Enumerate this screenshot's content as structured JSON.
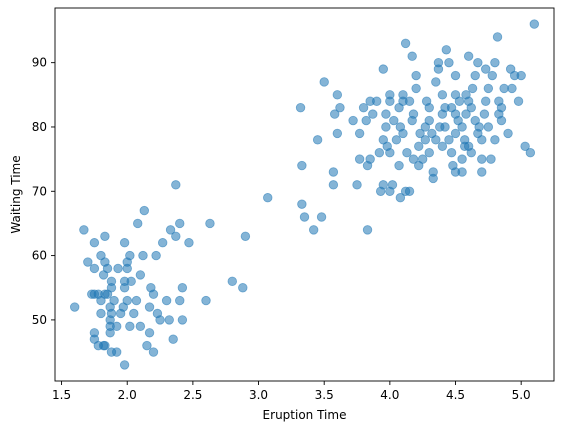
{
  "chart_data": {
    "type": "scatter",
    "title": "",
    "xlabel": "Eruption Time",
    "ylabel": "Waiting Time",
    "xlim": [
      1.45,
      5.25
    ],
    "ylim": [
      40.5,
      98.5
    ],
    "xticks": [
      1.5,
      2.0,
      2.5,
      3.0,
      3.5,
      4.0,
      4.5,
      5.0
    ],
    "xtick_labels": [
      "1.5",
      "2.0",
      "2.5",
      "3.0",
      "3.5",
      "4.0",
      "4.5",
      "5.0"
    ],
    "yticks": [
      50,
      60,
      70,
      80,
      90
    ],
    "ytick_labels": [
      "50",
      "60",
      "70",
      "80",
      "90"
    ],
    "grid": false,
    "marker_color": "#1f77b4",
    "marker_alpha": 0.55,
    "points": [
      [
        1.6,
        52
      ],
      [
        1.67,
        64
      ],
      [
        1.7,
        59
      ],
      [
        1.73,
        54
      ],
      [
        1.75,
        54
      ],
      [
        1.75,
        48
      ],
      [
        1.75,
        47
      ],
      [
        1.75,
        62
      ],
      [
        1.75,
        58
      ],
      [
        1.78,
        46
      ],
      [
        1.78,
        54
      ],
      [
        1.8,
        51
      ],
      [
        1.8,
        53
      ],
      [
        1.8,
        60
      ],
      [
        1.82,
        46
      ],
      [
        1.82,
        57
      ],
      [
        1.83,
        46
      ],
      [
        1.83,
        63
      ],
      [
        1.83,
        59
      ],
      [
        1.83,
        54
      ],
      [
        1.85,
        54
      ],
      [
        1.85,
        58
      ],
      [
        1.87,
        50
      ],
      [
        1.87,
        48
      ],
      [
        1.87,
        49
      ],
      [
        1.87,
        52
      ],
      [
        1.88,
        51
      ],
      [
        1.88,
        55
      ],
      [
        1.88,
        45
      ],
      [
        1.88,
        56
      ],
      [
        1.9,
        53
      ],
      [
        1.92,
        49
      ],
      [
        1.92,
        45
      ],
      [
        1.93,
        58
      ],
      [
        1.95,
        51
      ],
      [
        1.97,
        52
      ],
      [
        1.98,
        43
      ],
      [
        1.98,
        62
      ],
      [
        1.98,
        56
      ],
      [
        1.98,
        55
      ],
      [
        2.0,
        59
      ],
      [
        2.0,
        58
      ],
      [
        2.0,
        53
      ],
      [
        2.02,
        49
      ],
      [
        2.02,
        60
      ],
      [
        2.03,
        56
      ],
      [
        2.05,
        51
      ],
      [
        2.07,
        53
      ],
      [
        2.08,
        65
      ],
      [
        2.1,
        57
      ],
      [
        2.1,
        49
      ],
      [
        2.12,
        60
      ],
      [
        2.13,
        67
      ],
      [
        2.15,
        46
      ],
      [
        2.17,
        52
      ],
      [
        2.17,
        48
      ],
      [
        2.18,
        55
      ],
      [
        2.2,
        45
      ],
      [
        2.2,
        54
      ],
      [
        2.22,
        60
      ],
      [
        2.23,
        51
      ],
      [
        2.25,
        50
      ],
      [
        2.27,
        62
      ],
      [
        2.3,
        53
      ],
      [
        2.32,
        50
      ],
      [
        2.33,
        64
      ],
      [
        2.35,
        47
      ],
      [
        2.37,
        63
      ],
      [
        2.37,
        71
      ],
      [
        2.4,
        65
      ],
      [
        2.4,
        53
      ],
      [
        2.42,
        55
      ],
      [
        2.42,
        50
      ],
      [
        2.47,
        62
      ],
      [
        2.6,
        53
      ],
      [
        2.63,
        65
      ],
      [
        2.8,
        56
      ],
      [
        2.88,
        55
      ],
      [
        2.9,
        63
      ],
      [
        3.07,
        69
      ],
      [
        3.32,
        83
      ],
      [
        3.33,
        74
      ],
      [
        3.33,
        68
      ],
      [
        3.35,
        66
      ],
      [
        3.42,
        64
      ],
      [
        3.45,
        78
      ],
      [
        3.48,
        66
      ],
      [
        3.5,
        87
      ],
      [
        3.57,
        71
      ],
      [
        3.57,
        73
      ],
      [
        3.58,
        82
      ],
      [
        3.6,
        79
      ],
      [
        3.6,
        85
      ],
      [
        3.62,
        83
      ],
      [
        3.72,
        81
      ],
      [
        3.75,
        71
      ],
      [
        3.77,
        75
      ],
      [
        3.77,
        79
      ],
      [
        3.8,
        83
      ],
      [
        3.82,
        81
      ],
      [
        3.83,
        64
      ],
      [
        3.83,
        74
      ],
      [
        3.85,
        84
      ],
      [
        3.85,
        75
      ],
      [
        3.87,
        82
      ],
      [
        3.9,
        84
      ],
      [
        3.92,
        76
      ],
      [
        3.93,
        70
      ],
      [
        3.95,
        71
      ],
      [
        3.95,
        78
      ],
      [
        3.95,
        89
      ],
      [
        3.97,
        80
      ],
      [
        3.97,
        82
      ],
      [
        3.98,
        77
      ],
      [
        4.0,
        76
      ],
      [
        4.0,
        70
      ],
      [
        4.0,
        85
      ],
      [
        4.0,
        84
      ],
      [
        4.02,
        71
      ],
      [
        4.03,
        81
      ],
      [
        4.05,
        78
      ],
      [
        4.07,
        83
      ],
      [
        4.07,
        74
      ],
      [
        4.08,
        69
      ],
      [
        4.08,
        80
      ],
      [
        4.1,
        84
      ],
      [
        4.1,
        79
      ],
      [
        4.1,
        85
      ],
      [
        4.12,
        93
      ],
      [
        4.12,
        70
      ],
      [
        4.13,
        76
      ],
      [
        4.15,
        70
      ],
      [
        4.15,
        84
      ],
      [
        4.17,
        81
      ],
      [
        4.17,
        91
      ],
      [
        4.18,
        75
      ],
      [
        4.18,
        82
      ],
      [
        4.2,
        88
      ],
      [
        4.2,
        86
      ],
      [
        4.22,
        77
      ],
      [
        4.22,
        74
      ],
      [
        4.23,
        79
      ],
      [
        4.25,
        75
      ],
      [
        4.27,
        78
      ],
      [
        4.27,
        80
      ],
      [
        4.28,
        84
      ],
      [
        4.3,
        83
      ],
      [
        4.3,
        76
      ],
      [
        4.3,
        81
      ],
      [
        4.32,
        79
      ],
      [
        4.33,
        73
      ],
      [
        4.33,
        72
      ],
      [
        4.35,
        87
      ],
      [
        4.35,
        78
      ],
      [
        4.37,
        89
      ],
      [
        4.37,
        90
      ],
      [
        4.38,
        80
      ],
      [
        4.4,
        82
      ],
      [
        4.4,
        85
      ],
      [
        4.4,
        77
      ],
      [
        4.42,
        83
      ],
      [
        4.42,
        80
      ],
      [
        4.43,
        92
      ],
      [
        4.45,
        90
      ],
      [
        4.45,
        78
      ],
      [
        4.47,
        76
      ],
      [
        4.47,
        83
      ],
      [
        4.48,
        74
      ],
      [
        4.5,
        85
      ],
      [
        4.5,
        88
      ],
      [
        4.5,
        82
      ],
      [
        4.5,
        79
      ],
      [
        4.5,
        73
      ],
      [
        4.52,
        81
      ],
      [
        4.53,
        84
      ],
      [
        4.55,
        80
      ],
      [
        4.55,
        75
      ],
      [
        4.55,
        73
      ],
      [
        4.57,
        78
      ],
      [
        4.57,
        77
      ],
      [
        4.58,
        82
      ],
      [
        4.58,
        85
      ],
      [
        4.6,
        91
      ],
      [
        4.6,
        84
      ],
      [
        4.6,
        77
      ],
      [
        4.62,
        76
      ],
      [
        4.62,
        83
      ],
      [
        4.63,
        86
      ],
      [
        4.65,
        88
      ],
      [
        4.65,
        81
      ],
      [
        4.67,
        79
      ],
      [
        4.67,
        90
      ],
      [
        4.68,
        80
      ],
      [
        4.7,
        75
      ],
      [
        4.7,
        73
      ],
      [
        4.7,
        78
      ],
      [
        4.72,
        82
      ],
      [
        4.73,
        84
      ],
      [
        4.73,
        89
      ],
      [
        4.75,
        86
      ],
      [
        4.75,
        80
      ],
      [
        4.77,
        75
      ],
      [
        4.78,
        88
      ],
      [
        4.8,
        90
      ],
      [
        4.8,
        78
      ],
      [
        4.82,
        94
      ],
      [
        4.83,
        84
      ],
      [
        4.83,
        82
      ],
      [
        4.85,
        81
      ],
      [
        4.85,
        83
      ],
      [
        4.87,
        86
      ],
      [
        4.9,
        79
      ],
      [
        4.92,
        89
      ],
      [
        4.93,
        86
      ],
      [
        4.95,
        88
      ],
      [
        4.98,
        84
      ],
      [
        5.0,
        88
      ],
      [
        5.03,
        77
      ],
      [
        5.07,
        76
      ],
      [
        5.1,
        96
      ]
    ]
  }
}
